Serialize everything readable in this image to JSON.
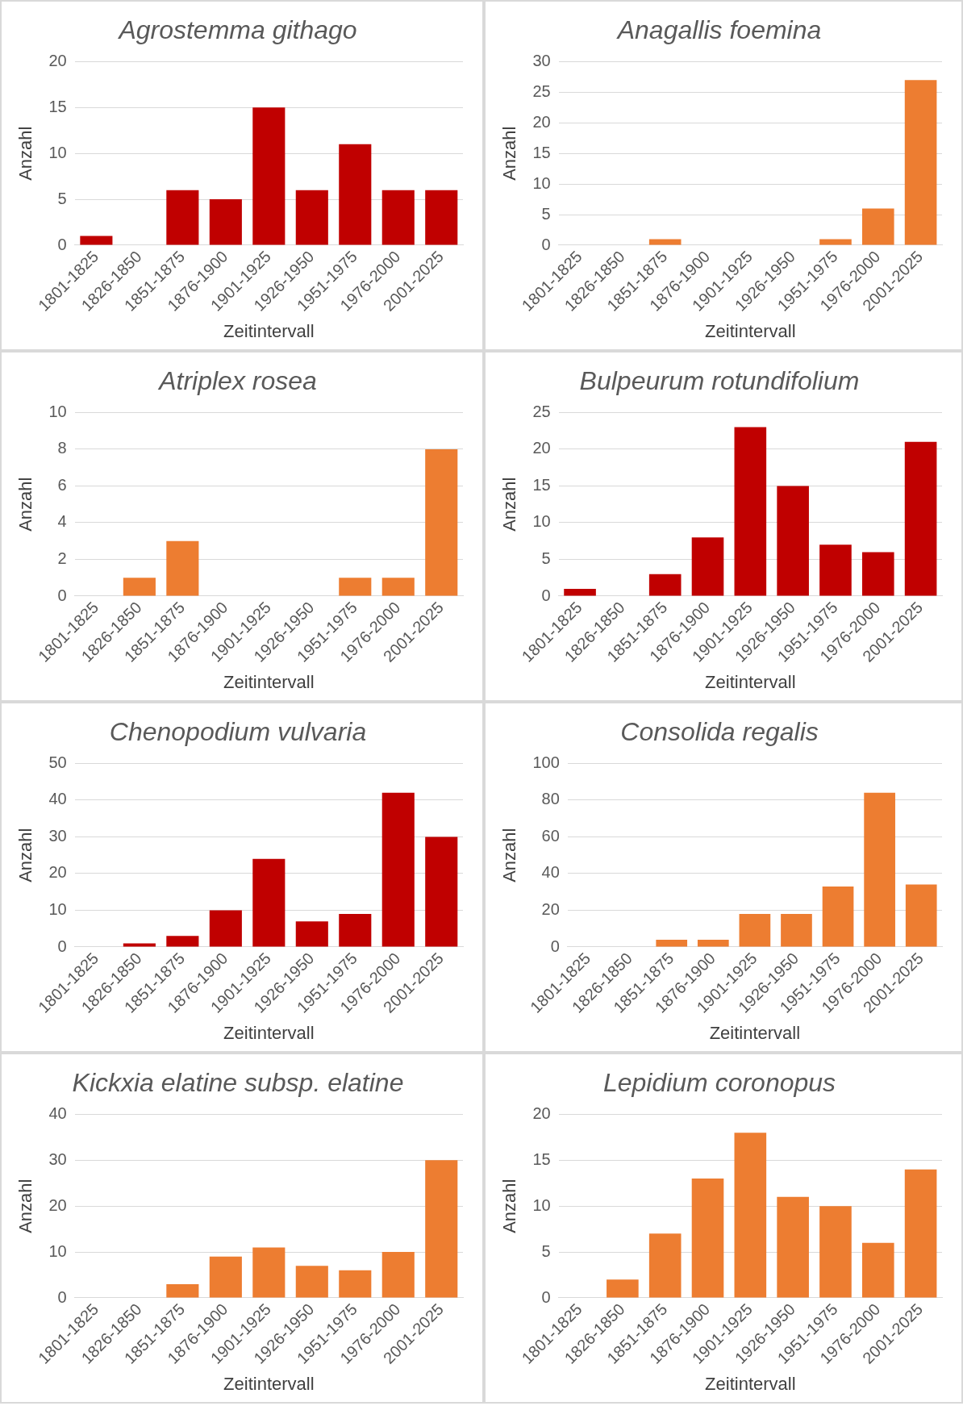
{
  "chart_data": [
    {
      "type": "bar",
      "title": "Agrostemma githago",
      "xlabel": "Zeitintervall",
      "ylabel": "Anzahl",
      "categories": [
        "1801-1825",
        "1826-1850",
        "1851-1875",
        "1876-1900",
        "1901-1925",
        "1926-1950",
        "1951-1975",
        "1976-2000",
        "2001-2025"
      ],
      "values": [
        1,
        0,
        6,
        5,
        15,
        6,
        11,
        6,
        6
      ],
      "color": "#c00000",
      "ylim": [
        0,
        20
      ],
      "yticks": [
        0,
        5,
        10,
        15,
        20
      ],
      "grid": "y"
    },
    {
      "type": "bar",
      "title": "Anagallis foemina",
      "xlabel": "Zeitintervall",
      "ylabel": "Anzahl",
      "categories": [
        "1801-1825",
        "1826-1850",
        "1851-1875",
        "1876-1900",
        "1901-1925",
        "1926-1950",
        "1951-1975",
        "1976-2000",
        "2001-2025"
      ],
      "values": [
        0,
        0,
        1,
        0,
        0,
        0,
        1,
        6,
        27
      ],
      "color": "#ed7d31",
      "ylim": [
        0,
        30
      ],
      "yticks": [
        0,
        5,
        10,
        15,
        20,
        25,
        30
      ],
      "grid": "y"
    },
    {
      "type": "bar",
      "title": "Atriplex rosea",
      "xlabel": "Zeitintervall",
      "ylabel": "Anzahl",
      "categories": [
        "1801-1825",
        "1826-1850",
        "1851-1875",
        "1876-1900",
        "1901-1925",
        "1926-1950",
        "1951-1975",
        "1976-2000",
        "2001-2025"
      ],
      "values": [
        0,
        1,
        3,
        0,
        0,
        0,
        1,
        1,
        8
      ],
      "color": "#ed7d31",
      "ylim": [
        0,
        10
      ],
      "yticks": [
        0,
        2,
        4,
        6,
        8,
        10
      ],
      "grid": "y"
    },
    {
      "type": "bar",
      "title": "Bulpeurum rotundifolium",
      "xlabel": "Zeitintervall",
      "ylabel": "Anzahl",
      "categories": [
        "1801-1825",
        "1826-1850",
        "1851-1875",
        "1876-1900",
        "1901-1925",
        "1926-1950",
        "1951-1975",
        "1976-2000",
        "2001-2025"
      ],
      "values": [
        1,
        0,
        3,
        8,
        23,
        15,
        7,
        6,
        21
      ],
      "color": "#c00000",
      "ylim": [
        0,
        25
      ],
      "yticks": [
        0,
        5,
        10,
        15,
        20,
        25
      ],
      "grid": "y"
    },
    {
      "type": "bar",
      "title": "Chenopodium vulvaria",
      "xlabel": "Zeitintervall",
      "ylabel": "Anzahl",
      "categories": [
        "1801-1825",
        "1826-1850",
        "1851-1875",
        "1876-1900",
        "1901-1925",
        "1926-1950",
        "1951-1975",
        "1976-2000",
        "2001-2025"
      ],
      "values": [
        0,
        1,
        3,
        10,
        24,
        7,
        9,
        42,
        30
      ],
      "color": "#c00000",
      "ylim": [
        0,
        50
      ],
      "yticks": [
        0,
        10,
        20,
        30,
        40,
        50
      ],
      "grid": "y"
    },
    {
      "type": "bar",
      "title": "Consolida regalis",
      "xlabel": "Zeitintervall",
      "ylabel": "Anzahl",
      "categories": [
        "1801-1825",
        "1826-1850",
        "1851-1875",
        "1876-1900",
        "1901-1925",
        "1926-1950",
        "1951-1975",
        "1976-2000",
        "2001-2025"
      ],
      "values": [
        0,
        0,
        4,
        4,
        18,
        18,
        33,
        84,
        34
      ],
      "color": "#ed7d31",
      "ylim": [
        0,
        100
      ],
      "yticks": [
        0,
        20,
        40,
        60,
        80,
        100
      ],
      "grid": "y"
    },
    {
      "type": "bar",
      "title": "Kickxia elatine subsp. elatine",
      "xlabel": "Zeitintervall",
      "ylabel": "Anzahl",
      "categories": [
        "1801-1825",
        "1826-1850",
        "1851-1875",
        "1876-1900",
        "1901-1925",
        "1926-1950",
        "1951-1975",
        "1976-2000",
        "2001-2025"
      ],
      "values": [
        0,
        0,
        3,
        9,
        11,
        7,
        6,
        10,
        30
      ],
      "color": "#ed7d31",
      "ylim": [
        0,
        40
      ],
      "yticks": [
        0,
        10,
        20,
        30,
        40
      ],
      "grid": "y"
    },
    {
      "type": "bar",
      "title": "Lepidium coronopus",
      "xlabel": "Zeitintervall",
      "ylabel": "Anzahl",
      "categories": [
        "1801-1825",
        "1826-1850",
        "1851-1875",
        "1876-1900",
        "1901-1925",
        "1926-1950",
        "1951-1975",
        "1976-2000",
        "2001-2025"
      ],
      "values": [
        0,
        2,
        7,
        13,
        18,
        11,
        10,
        6,
        14
      ],
      "color": "#ed7d31",
      "ylim": [
        0,
        20
      ],
      "yticks": [
        0,
        5,
        10,
        15,
        20
      ],
      "grid": "y"
    }
  ]
}
